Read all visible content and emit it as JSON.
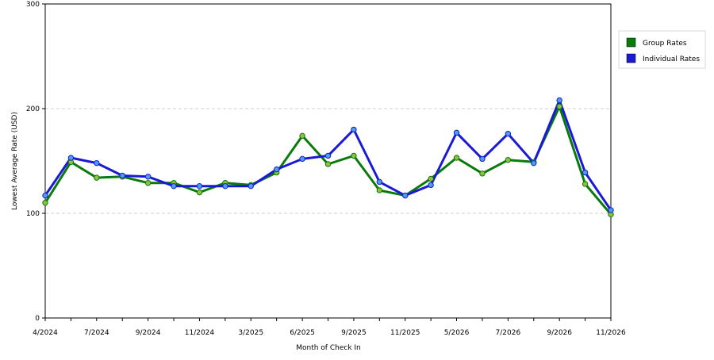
{
  "chart_data": {
    "type": "line",
    "xlabel": "Month of Check In",
    "ylabel": "Lowest Average Rate (USD)",
    "ylim": [
      0,
      300
    ],
    "yticks": [
      "0",
      "100",
      "200",
      "300"
    ],
    "grid": "horizontal dashed at 100 and 200",
    "legend_position": "right",
    "x_tick_labels": [
      "4/2024",
      "7/2024",
      "9/2024",
      "11/2024",
      "3/2025",
      "6/2025",
      "9/2025",
      "11/2025",
      "5/2026",
      "7/2026",
      "9/2026",
      "11/2026"
    ],
    "series": [
      {
        "name": "Group Rates",
        "color": "#0a7a0a",
        "values": [
          110,
          149,
          134,
          135,
          129,
          129,
          120,
          129,
          127,
          139,
          174,
          147,
          155,
          122,
          117,
          133,
          153,
          138,
          151,
          149,
          202,
          128,
          99
        ]
      },
      {
        "name": "Individual Rates",
        "color": "#1a1ad6",
        "values": [
          117,
          153,
          148,
          136,
          135,
          126,
          126,
          126,
          126,
          142,
          152,
          155,
          180,
          130,
          117,
          127,
          177,
          152,
          176,
          148,
          208,
          139,
          103
        ]
      }
    ]
  }
}
